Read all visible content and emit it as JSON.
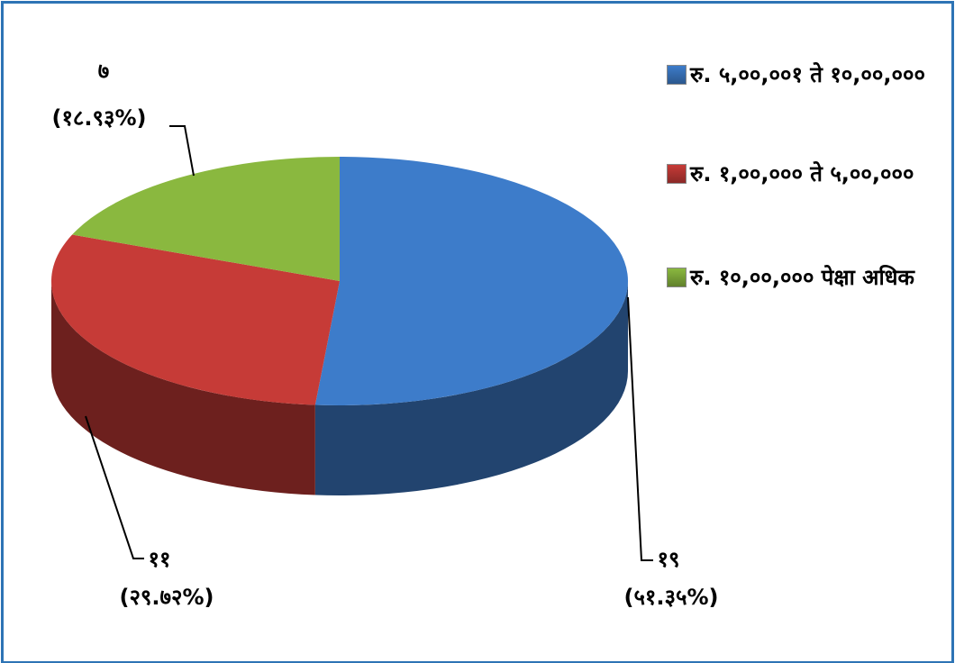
{
  "chart_data": {
    "type": "pie",
    "categories": [
      "रु. ५,००,००१ ते १०,००,०००",
      "रु. १,००,००० ते ५,००,०००",
      "रु. १०,००,००० पेक्षा अधिक"
    ],
    "values": [
      19,
      11,
      7
    ],
    "value_labels": [
      "१९",
      "११",
      "७"
    ],
    "percentages": [
      51.35,
      29.72,
      18.93
    ],
    "percentage_labels": [
      "(५१.३५%)",
      "(२९.७२%)",
      "(१८.९३%)"
    ],
    "colors": [
      "#3d7cca",
      "#c63b37",
      "#8ab83f"
    ],
    "legend": "right"
  }
}
